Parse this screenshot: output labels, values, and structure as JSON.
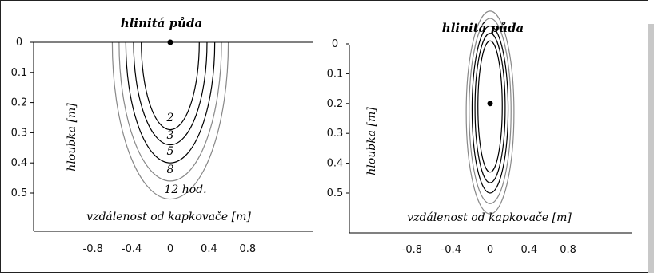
{
  "chart_data": [
    {
      "type": "contour",
      "title": "hlinitá půda",
      "xlabel": "vzdálenost od kapkovače [m]",
      "ylabel": "hloubka [m]",
      "x_ticks": [
        "-0.8",
        "-0.4",
        "0",
        "0.4",
        "0.8"
      ],
      "y_ticks": [
        "0",
        "0.1",
        "0.2",
        "0.3",
        "0.4",
        "0.5"
      ],
      "source": {
        "x": 0,
        "y": 0
      },
      "contours": [
        {
          "label": "2",
          "color": "#000000",
          "half_width": 0.3,
          "depth": 0.29
        },
        {
          "label": "3",
          "color": "#000000",
          "half_width": 0.38,
          "depth": 0.34
        },
        {
          "label": "5",
          "color": "#000000",
          "half_width": 0.46,
          "depth": 0.4
        },
        {
          "label": "8",
          "color": "#888888",
          "half_width": 0.53,
          "depth": 0.46
        },
        {
          "label": "12 hod.",
          "color": "#888888",
          "half_width": 0.6,
          "depth": 0.52
        }
      ]
    },
    {
      "type": "contour",
      "title": "hlinitá půda",
      "xlabel": "vzdálenost od kapkovače  [m]",
      "ylabel": "hloubka [m]",
      "x_ticks": [
        "-0.8",
        "-0.4",
        "0",
        "0.4",
        "0.8"
      ],
      "y_ticks": [
        "0",
        "0.1",
        "0.2",
        "0.3",
        "0.4",
        "0.5"
      ],
      "source": {
        "x": 0,
        "y": 0.2
      },
      "contours": [
        {
          "color": "#000000",
          "half_width": 0.25,
          "y_top": -0.01,
          "y_bottom": 0.43
        },
        {
          "color": "#000000",
          "half_width": 0.31,
          "y_top": -0.035,
          "y_bottom": 0.465
        },
        {
          "color": "#000000",
          "half_width": 0.37,
          "y_top": -0.06,
          "y_bottom": 0.5
        },
        {
          "color": "#888888",
          "half_width": 0.43,
          "y_top": -0.085,
          "y_bottom": 0.535
        },
        {
          "color": "#888888",
          "half_width": 0.49,
          "y_top": -0.11,
          "y_bottom": 0.57
        }
      ]
    }
  ]
}
